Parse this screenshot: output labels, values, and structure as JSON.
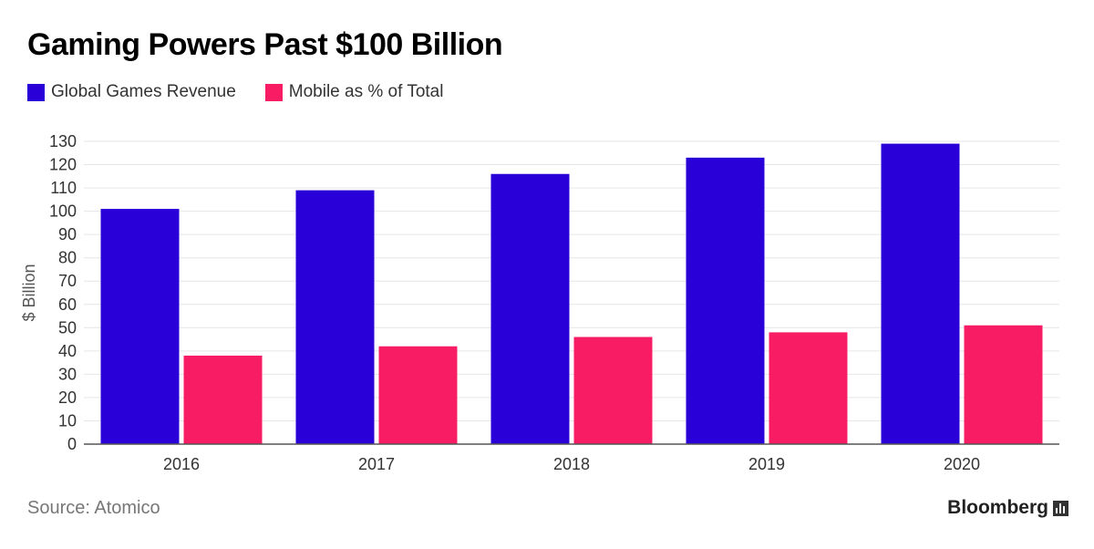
{
  "title": "Gaming Powers Past $100 Billion",
  "legend": [
    {
      "label": "Global Games Revenue",
      "color": "#2a00d8"
    },
    {
      "label": "Mobile as % of Total",
      "color": "#f71c64"
    }
  ],
  "source": "Source: Atomico",
  "brand": "Bloomberg",
  "brand_icon": "bar-chart-icon",
  "chart_data": {
    "type": "bar",
    "title": "Gaming Powers Past $100 Billion",
    "xlabel": "",
    "ylabel": "$ Billion",
    "categories": [
      "2016",
      "2017",
      "2018",
      "2019",
      "2020"
    ],
    "series": [
      {
        "name": "Global Games Revenue",
        "color": "#2a00d8",
        "values": [
          101,
          109,
          116,
          123,
          129
        ]
      },
      {
        "name": "Mobile as % of Total",
        "color": "#f71c64",
        "values": [
          38,
          42,
          46,
          48,
          51
        ]
      }
    ],
    "ylim": [
      0,
      130
    ],
    "yticks": [
      0,
      10,
      20,
      30,
      40,
      50,
      60,
      70,
      80,
      90,
      100,
      110,
      120,
      130
    ],
    "grid": true,
    "legend_position": "top-left"
  }
}
